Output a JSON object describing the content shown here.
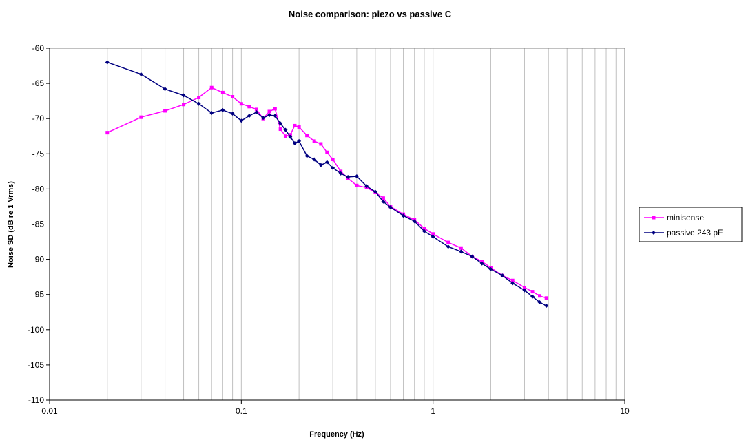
{
  "chart_data": {
    "type": "line",
    "title": "Noise comparison:  piezo vs passive C",
    "xlabel": "Frequency (Hz)",
    "ylabel": "Noise SD (dB re 1 Vrms)",
    "xscale": "log",
    "xlim": [
      0.01,
      10
    ],
    "ylim": [
      -110,
      -60
    ],
    "x_ticks": [
      0.01,
      0.1,
      1,
      10
    ],
    "x_tick_labels": [
      "0.01",
      "0.1",
      "1",
      "10"
    ],
    "y_ticks": [
      -60,
      -65,
      -70,
      -75,
      -80,
      -85,
      -90,
      -95,
      -100,
      -105,
      -110
    ],
    "y_tick_labels": [
      "-60",
      "-65",
      "-70",
      "-75",
      "-80",
      "-85",
      "-90",
      "-95",
      "-100",
      "-105",
      "-110"
    ],
    "grid": "vertical log-minor gridlines",
    "legend_position": "right",
    "colors": {
      "minisense": "#ff00ff",
      "passive": "#000080",
      "grid": "#c0c0c0",
      "axis": "#000000"
    },
    "series": [
      {
        "name": "minisense",
        "color": "#ff00ff",
        "marker": "square",
        "x": [
          0.02,
          0.03,
          0.04,
          0.05,
          0.06,
          0.07,
          0.08,
          0.09,
          0.1,
          0.11,
          0.12,
          0.13,
          0.14,
          0.15,
          0.16,
          0.17,
          0.18,
          0.19,
          0.2,
          0.22,
          0.24,
          0.26,
          0.28,
          0.3,
          0.33,
          0.36,
          0.4,
          0.45,
          0.5,
          0.55,
          0.6,
          0.7,
          0.8,
          0.9,
          1.0,
          1.2,
          1.4,
          1.6,
          1.8,
          2.0,
          2.3,
          2.6,
          3.0,
          3.3,
          3.6,
          3.9
        ],
        "y": [
          -72,
          -69.8,
          -68.9,
          -68,
          -67,
          -65.6,
          -66.3,
          -66.9,
          -67.9,
          -68.3,
          -68.7,
          -70,
          -69,
          -68.6,
          -71.5,
          -72.5,
          -72.3,
          -71,
          -71.2,
          -72.4,
          -73.2,
          -73.6,
          -74.8,
          -75.8,
          -77.5,
          -78.5,
          -79.5,
          -79.8,
          -80.5,
          -81.3,
          -82.5,
          -83.6,
          -84.4,
          -85.6,
          -86.4,
          -87.6,
          -88.4,
          -89.6,
          -90.3,
          -91.2,
          -92.3,
          -93,
          -94,
          -94.6,
          -95.2,
          -95.5
        ]
      },
      {
        "name": "passive 243 pF",
        "color": "#000080",
        "marker": "diamond",
        "x": [
          0.02,
          0.03,
          0.04,
          0.05,
          0.06,
          0.07,
          0.08,
          0.09,
          0.1,
          0.11,
          0.12,
          0.13,
          0.14,
          0.15,
          0.16,
          0.17,
          0.18,
          0.19,
          0.2,
          0.22,
          0.24,
          0.26,
          0.28,
          0.3,
          0.33,
          0.36,
          0.4,
          0.45,
          0.5,
          0.55,
          0.6,
          0.7,
          0.8,
          0.9,
          1.0,
          1.2,
          1.4,
          1.6,
          1.8,
          2.0,
          2.3,
          2.6,
          3.0,
          3.3,
          3.6,
          3.9
        ],
        "y": [
          -62,
          -63.7,
          -65.8,
          -66.7,
          -67.9,
          -69.2,
          -68.8,
          -69.3,
          -70.3,
          -69.6,
          -69.1,
          -69.9,
          -69.5,
          -69.6,
          -70.7,
          -71.6,
          -72.6,
          -73.5,
          -73.2,
          -75.3,
          -75.8,
          -76.6,
          -76.2,
          -77,
          -77.8,
          -78.3,
          -78.2,
          -79.6,
          -80.4,
          -81.8,
          -82.6,
          -83.8,
          -84.6,
          -86,
          -86.8,
          -88.2,
          -88.9,
          -89.6,
          -90.6,
          -91.4,
          -92.3,
          -93.4,
          -94.4,
          -95.3,
          -96.1,
          -96.6
        ]
      }
    ]
  }
}
